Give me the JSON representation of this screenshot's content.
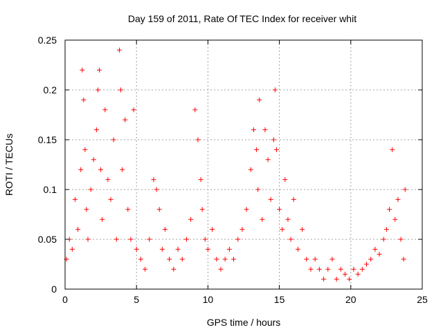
{
  "chart_data": {
    "type": "scatter",
    "title": "Day 159 of 2011, Rate Of TEC Index for receiver whit",
    "xlabel": "GPS time / hours",
    "ylabel": "ROTI / TECUs",
    "xlim": [
      0,
      25
    ],
    "ylim": [
      0,
      0.25
    ],
    "xticks": [
      "0",
      "5",
      "10",
      "15",
      "20",
      "25"
    ],
    "yticks": [
      "0",
      "0.05",
      "0.1",
      "0.15",
      "0.2",
      "0.25"
    ],
    "grid": true,
    "legend": "none",
    "marker": "+",
    "color": "#ff0000",
    "series": [
      {
        "x": [
          0.1,
          0.3,
          0.5,
          0.7,
          0.9,
          1.1,
          1.2,
          1.3,
          1.4,
          1.5,
          1.6,
          1.8,
          2.0,
          2.2,
          2.3,
          2.4,
          2.5,
          2.6,
          2.8,
          3.0,
          3.2,
          3.4,
          3.6,
          3.8,
          3.9,
          4.0,
          4.2,
          4.4,
          4.6,
          4.8,
          5.0,
          5.3,
          5.6,
          5.9,
          6.2,
          6.4,
          6.6,
          6.8,
          7.0,
          7.3,
          7.6,
          7.9,
          8.2,
          8.5,
          8.8,
          9.1,
          9.3,
          9.5,
          9.6,
          9.8,
          10.0,
          10.3,
          10.6,
          10.9,
          11.2,
          11.5,
          11.8,
          12.1,
          12.4,
          12.7,
          13.0,
          13.2,
          13.4,
          13.5,
          13.6,
          13.8,
          14.0,
          14.2,
          14.4,
          14.6,
          14.7,
          14.8,
          15.0,
          15.2,
          15.4,
          15.6,
          15.8,
          16.0,
          16.3,
          16.6,
          16.9,
          17.2,
          17.5,
          17.8,
          18.1,
          18.4,
          18.7,
          19.0,
          19.3,
          19.6,
          19.9,
          20.2,
          20.5,
          20.8,
          21.1,
          21.4,
          21.7,
          22.0,
          22.3,
          22.5,
          22.7,
          22.9,
          23.1,
          23.3,
          23.5,
          23.7,
          23.8
        ],
        "y": [
          0.03,
          0.05,
          0.04,
          0.09,
          0.06,
          0.12,
          0.22,
          0.19,
          0.14,
          0.08,
          0.05,
          0.1,
          0.13,
          0.16,
          0.2,
          0.22,
          0.12,
          0.07,
          0.18,
          0.11,
          0.09,
          0.15,
          0.05,
          0.24,
          0.2,
          0.12,
          0.17,
          0.08,
          0.05,
          0.18,
          0.04,
          0.03,
          0.02,
          0.05,
          0.11,
          0.1,
          0.08,
          0.04,
          0.06,
          0.03,
          0.02,
          0.04,
          0.03,
          0.05,
          0.07,
          0.18,
          0.15,
          0.11,
          0.08,
          0.05,
          0.04,
          0.06,
          0.03,
          0.02,
          0.03,
          0.04,
          0.03,
          0.05,
          0.06,
          0.08,
          0.12,
          0.16,
          0.14,
          0.1,
          0.19,
          0.07,
          0.16,
          0.13,
          0.09,
          0.15,
          0.2,
          0.14,
          0.08,
          0.06,
          0.11,
          0.07,
          0.05,
          0.09,
          0.04,
          0.06,
          0.03,
          0.02,
          0.03,
          0.02,
          0.01,
          0.02,
          0.03,
          0.01,
          0.02,
          0.015,
          0.01,
          0.02,
          0.015,
          0.02,
          0.025,
          0.03,
          0.04,
          0.035,
          0.05,
          0.06,
          0.08,
          0.14,
          0.07,
          0.09,
          0.05,
          0.03,
          0.1
        ]
      }
    ]
  }
}
